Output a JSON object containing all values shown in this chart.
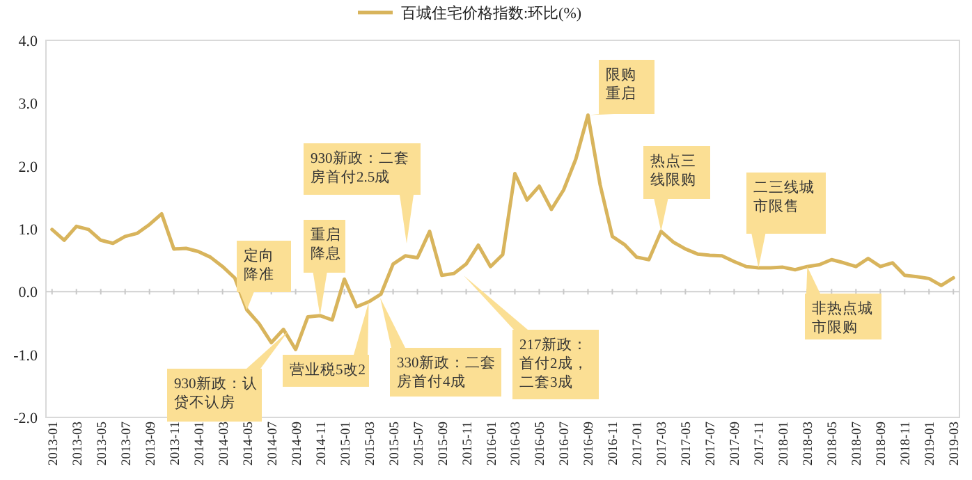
{
  "chart_data": {
    "type": "line",
    "categories": [
      "2013-01",
      null,
      "2013-03",
      null,
      "2013-05",
      null,
      "2013-07",
      null,
      "2013-09",
      null,
      "2013-11",
      null,
      "2014-01",
      null,
      "2014-03",
      null,
      "2014-05",
      null,
      "2014-07",
      null,
      "2014-09",
      null,
      "2014-11",
      null,
      "2015-01",
      null,
      "2015-03",
      null,
      "2015-05",
      null,
      "2015-07",
      null,
      "2015-09",
      null,
      "2015-11",
      null,
      "2016-01",
      null,
      "2016-03",
      null,
      "2016-05",
      null,
      "2016-07",
      null,
      "2016-09",
      null,
      "2016-11",
      null,
      "2017-01",
      null,
      "2017-03",
      null,
      "2017-05",
      null,
      "2017-07",
      null,
      "2017-09",
      null,
      "2017-11",
      null,
      "2018-01",
      null,
      "2018-03",
      null,
      "2018-05",
      null,
      "2018-07",
      null,
      "2018-09",
      null,
      "2018-11",
      null,
      "2019-01",
      null,
      "2019-03"
    ],
    "series": [
      {
        "name": "百城住宅价格指数:环比(%)",
        "color": "#d8b45c",
        "values": [
          0.99,
          0.82,
          1.04,
          0.99,
          0.82,
          0.77,
          0.88,
          0.93,
          1.07,
          1.24,
          0.68,
          0.69,
          0.64,
          0.55,
          0.4,
          0.22,
          -0.29,
          -0.51,
          -0.81,
          -0.6,
          -0.92,
          -0.4,
          -0.38,
          -0.45,
          0.2,
          -0.24,
          -0.16,
          -0.04,
          0.44,
          0.57,
          0.54,
          0.96,
          0.26,
          0.29,
          0.44,
          0.74,
          0.4,
          0.59,
          1.88,
          1.46,
          1.68,
          1.31,
          1.62,
          2.11,
          2.81,
          1.7,
          0.88,
          0.75,
          0.55,
          0.51,
          0.96,
          0.79,
          0.68,
          0.6,
          0.58,
          0.57,
          0.48,
          0.4,
          0.38,
          0.38,
          0.39,
          0.35,
          0.4,
          0.43,
          0.51,
          0.46,
          0.4,
          0.53,
          0.4,
          0.46,
          0.26,
          0.24,
          0.21,
          0.1,
          0.22
        ]
      }
    ],
    "ylim": [
      -2,
      4
    ],
    "yticks": [
      {
        "value": -2,
        "label": "-2.0"
      },
      {
        "value": -1,
        "label": "-1.0"
      },
      {
        "value": 0,
        "label": "0.0"
      },
      {
        "value": 1,
        "label": "1.0"
      },
      {
        "value": 2,
        "label": "2.0"
      },
      {
        "value": 3,
        "label": "3.0"
      },
      {
        "value": 4,
        "label": "4.0"
      }
    ],
    "legend": "top",
    "annotations": [
      "930新政：认贷不认房",
      {
        "text": "定向降准",
        "x": "2014-05",
        "y": -0.29
      },
      {
        "text": "重启降息",
        "x": "2014-11",
        "y": -0.38
      },
      {
        "text": "营业税5改2",
        "x": "2015-03",
        "y": -0.16
      },
      "930新政：二套房首付2.5成",
      "330新政：二套房首付4成",
      "217新政：首付2成，二套3成",
      {
        "text": "限购重启",
        "x": "2016-09",
        "y": 2.81
      },
      {
        "text": "热点三线限购",
        "x": "2017-03",
        "y": 0.96
      },
      {
        "text": "二三线城市限售",
        "x": "2017-11",
        "y": 0.38
      },
      {
        "text": "非热点城市限购",
        "x": "2018-03",
        "y": 0.4
      }
    ]
  }
}
